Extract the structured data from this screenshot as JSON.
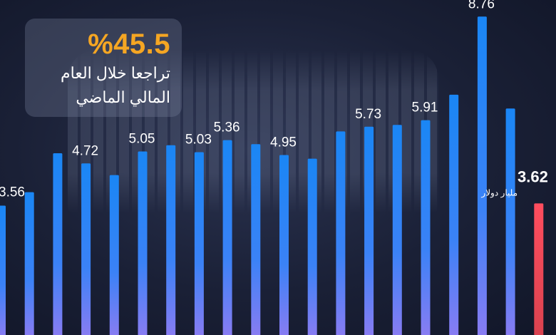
{
  "info": {
    "percent": "%45.5",
    "line1": "تراجعا خلال العام",
    "line2": "المالي الماضي"
  },
  "chart_data": {
    "type": "bar",
    "title": "",
    "xlabel": "",
    "ylabel": "",
    "unit_label": "مليار دولار",
    "values": [
      3.56,
      3.93,
      5.0,
      4.72,
      4.4,
      5.05,
      5.22,
      5.03,
      5.36,
      5.25,
      4.95,
      4.85,
      5.6,
      5.73,
      5.78,
      5.91,
      6.61,
      8.76,
      6.23,
      3.62
    ],
    "labels": [
      "3.56",
      "",
      "",
      "4.72",
      "",
      "5.05",
      "",
      "5.03",
      "5.36",
      "",
      "4.95",
      "",
      "",
      "5.73",
      "",
      "5.91",
      "",
      "8.76",
      "",
      "3.62"
    ],
    "highlight_index": 19,
    "colors": {
      "bar_top": "#1a86f5",
      "bar_bottom": "#8a7cf2",
      "highlight_top": "#ff4d5e",
      "highlight_bottom": "#d9424f",
      "text": "#ffffff",
      "accent": "#f5a623"
    }
  }
}
